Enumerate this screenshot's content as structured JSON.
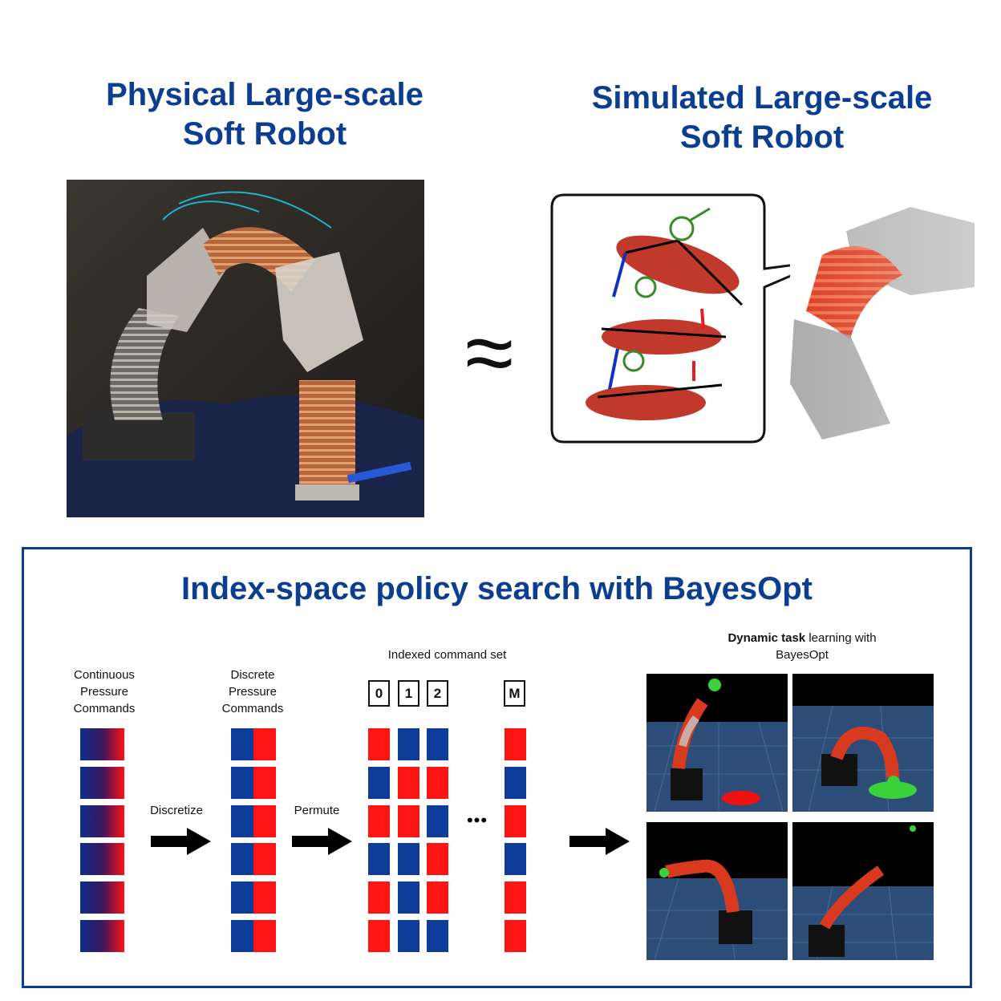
{
  "top": {
    "physical_title_line1": "Physical Large-scale",
    "physical_title_line2": "Soft Robot",
    "simulated_title_line1": "Simulated Large-scale",
    "simulated_title_line2": "Soft Robot",
    "approx_symbol": "≈"
  },
  "bottom": {
    "title": "Index-space policy search with BayesOpt",
    "continuous_label": [
      "Continuous",
      "Pressure",
      "Commands"
    ],
    "discrete_label": [
      "Discrete",
      "Pressure",
      "Commands"
    ],
    "discretize_label": "Discretize",
    "permute_label": "Permute",
    "indexed_label": "Indexed command set",
    "index_labels": [
      "0",
      "1",
      "2",
      "M"
    ],
    "ellipsis": "•••",
    "dynamic_bold": "Dynamic task",
    "dynamic_rest": " learning with",
    "dynamic_line2": "BayesOpt"
  },
  "colors": {
    "accent": "#0b3d91",
    "blue": "#0d3c9b",
    "red": "#ff1414"
  },
  "discrete_column": [
    [
      "blue",
      "red"
    ],
    [
      "blue",
      "red"
    ],
    [
      "blue",
      "red"
    ],
    [
      "blue",
      "red"
    ],
    [
      "blue",
      "red"
    ],
    [
      "blue",
      "red"
    ]
  ],
  "index_columns": [
    [
      "red",
      "blue",
      "red",
      "blue",
      "red",
      "red"
    ],
    [
      "blue",
      "red",
      "red",
      "blue",
      "blue",
      "blue"
    ],
    [
      "blue",
      "red",
      "blue",
      "red",
      "red",
      "blue"
    ],
    [
      "red",
      "blue",
      "red",
      "blue",
      "red",
      "red"
    ]
  ]
}
